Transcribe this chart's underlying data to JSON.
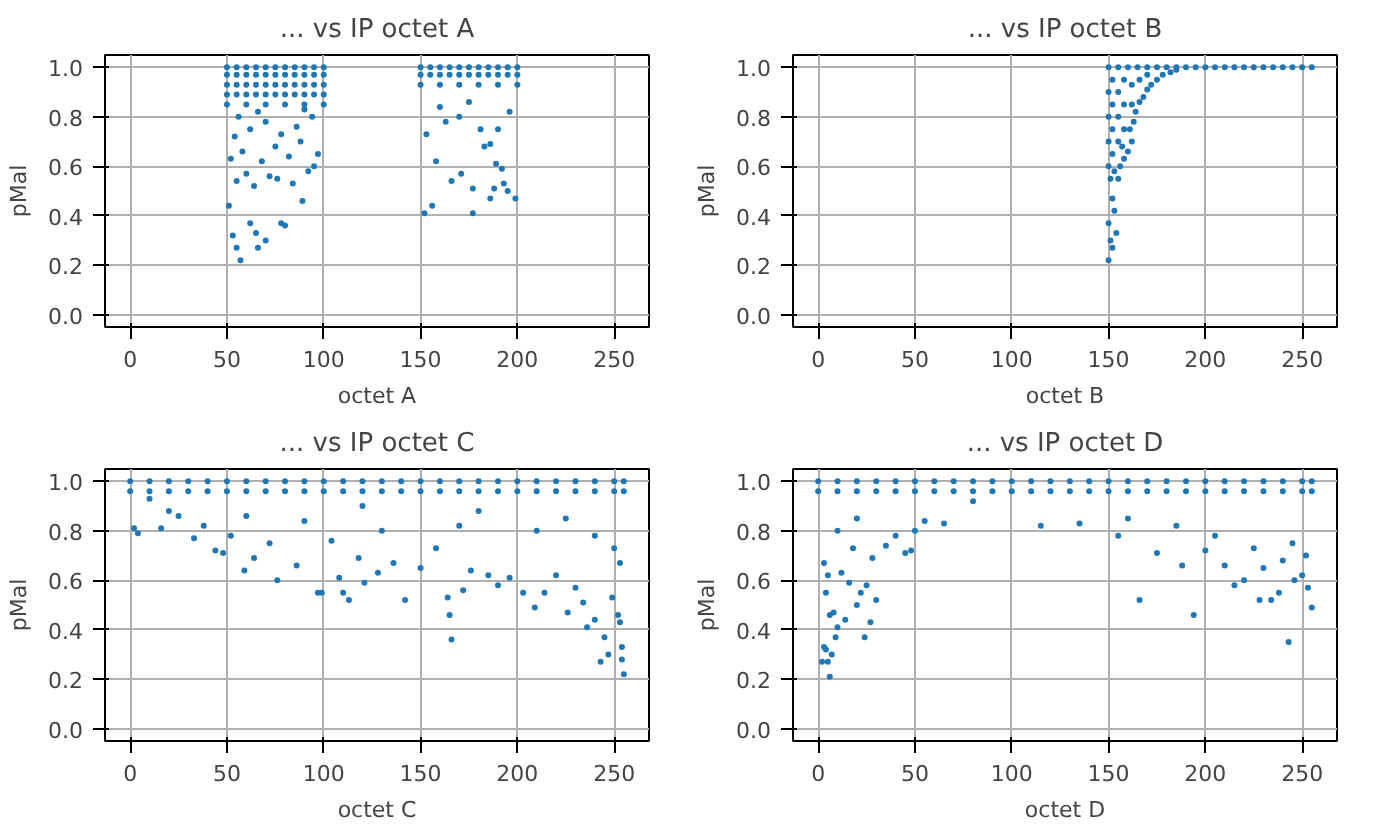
{
  "chart_data": [
    {
      "type": "scatter",
      "title": "... vs IP octet A",
      "xlabel": "octet A",
      "ylabel": "pMal",
      "color": "#1f77b4",
      "marker": "circle",
      "grid": true,
      "xlim": [
        -13,
        268
      ],
      "ylim": [
        -0.05,
        1.05
      ],
      "xticks": [
        0,
        50,
        100,
        150,
        200,
        250
      ],
      "yticks": [
        {
          "value": 0,
          "label": "0.0"
        },
        {
          "value": 0.2,
          "label": "0.2"
        },
        {
          "value": 0.4,
          "label": "0.4"
        },
        {
          "value": 0.6,
          "label": "0.6"
        },
        {
          "value": 0.8,
          "label": "0.8"
        },
        {
          "value": 1,
          "label": "1.0"
        }
      ],
      "x": [
        50,
        55,
        60,
        65,
        70,
        75,
        80,
        85,
        90,
        95,
        100,
        50,
        55,
        60,
        65,
        70,
        75,
        80,
        85,
        90,
        95,
        100,
        50,
        55,
        60,
        65,
        70,
        75,
        80,
        85,
        90,
        95,
        100,
        50,
        55,
        60,
        65,
        70,
        75,
        80,
        85,
        90,
        95,
        100,
        50,
        60,
        70,
        80,
        90,
        100,
        150,
        155,
        160,
        165,
        170,
        175,
        180,
        185,
        190,
        195,
        200,
        150,
        155,
        160,
        165,
        170,
        175,
        180,
        185,
        190,
        195,
        200,
        150,
        160,
        170,
        180,
        190,
        200,
        51,
        53,
        55,
        57,
        62,
        65,
        66,
        70,
        78,
        80,
        89,
        55,
        60,
        64,
        72,
        76,
        84,
        92,
        95,
        52,
        58,
        68,
        75,
        82,
        88,
        97,
        54,
        62,
        70,
        78,
        86,
        94,
        56,
        66,
        90,
        152,
        156,
        158,
        153,
        166,
        171,
        177,
        177,
        186,
        188,
        189,
        192,
        193,
        195,
        199,
        183,
        186,
        181,
        163,
        170,
        190,
        196,
        160,
        175
      ],
      "values": [
        1.0,
        1.0,
        1.0,
        1.0,
        1.0,
        1.0,
        1.0,
        1.0,
        1.0,
        1.0,
        1.0,
        0.97,
        0.97,
        0.97,
        0.97,
        0.97,
        0.97,
        0.97,
        0.97,
        0.97,
        0.97,
        0.97,
        0.93,
        0.93,
        0.93,
        0.93,
        0.93,
        0.93,
        0.93,
        0.93,
        0.93,
        0.93,
        0.93,
        0.89,
        0.89,
        0.89,
        0.89,
        0.89,
        0.89,
        0.89,
        0.89,
        0.89,
        0.89,
        0.89,
        0.85,
        0.85,
        0.85,
        0.85,
        0.85,
        0.85,
        1.0,
        1.0,
        1.0,
        1.0,
        1.0,
        1.0,
        1.0,
        1.0,
        1.0,
        1.0,
        1.0,
        0.97,
        0.97,
        0.97,
        0.97,
        0.97,
        0.97,
        0.97,
        0.97,
        0.97,
        0.97,
        0.97,
        0.93,
        0.93,
        0.93,
        0.93,
        0.93,
        0.93,
        0.44,
        0.32,
        0.27,
        0.22,
        0.37,
        0.33,
        0.27,
        0.3,
        0.37,
        0.36,
        0.46,
        0.54,
        0.57,
        0.52,
        0.56,
        0.55,
        0.53,
        0.58,
        0.6,
        0.63,
        0.66,
        0.62,
        0.68,
        0.64,
        0.7,
        0.65,
        0.72,
        0.75,
        0.78,
        0.73,
        0.76,
        0.8,
        0.8,
        0.82,
        0.83,
        0.41,
        0.44,
        0.62,
        0.73,
        0.54,
        0.57,
        0.41,
        0.51,
        0.47,
        0.51,
        0.61,
        0.59,
        0.53,
        0.5,
        0.47,
        0.68,
        0.69,
        0.75,
        0.78,
        0.8,
        0.75,
        0.82,
        0.84,
        0.86
      ]
    },
    {
      "type": "scatter",
      "title": "... vs IP octet B",
      "xlabel": "octet B",
      "ylabel": "pMal",
      "color": "#1f77b4",
      "marker": "circle",
      "grid": true,
      "xlim": [
        -13,
        268
      ],
      "ylim": [
        -0.05,
        1.05
      ],
      "xticks": [
        0,
        50,
        100,
        150,
        200,
        250
      ],
      "yticks": [
        {
          "value": 0,
          "label": "0.0"
        },
        {
          "value": 0.2,
          "label": "0.2"
        },
        {
          "value": 0.4,
          "label": "0.4"
        },
        {
          "value": 0.6,
          "label": "0.6"
        },
        {
          "value": 0.8,
          "label": "0.8"
        },
        {
          "value": 1,
          "label": "1.0"
        }
      ],
      "x": [
        150,
        155,
        160,
        165,
        170,
        175,
        180,
        185,
        190,
        195,
        200,
        205,
        210,
        215,
        220,
        225,
        230,
        235,
        240,
        245,
        250,
        255,
        150,
        150,
        151,
        152,
        153,
        152,
        154,
        151,
        153,
        155,
        156,
        158,
        157,
        160,
        162,
        161,
        163,
        164,
        166,
        168,
        170,
        172,
        175,
        178,
        182,
        185,
        150,
        150,
        150,
        150,
        152,
        152,
        152,
        152,
        155,
        155,
        155,
        158,
        158,
        158,
        162,
        162,
        166,
        170
      ],
      "values": [
        1.0,
        1.0,
        1.0,
        1.0,
        1.0,
        1.0,
        1.0,
        1.0,
        1.0,
        1.0,
        1.0,
        1.0,
        1.0,
        1.0,
        1.0,
        1.0,
        1.0,
        1.0,
        1.0,
        1.0,
        1.0,
        1.0,
        0.22,
        0.37,
        0.3,
        0.27,
        0.42,
        0.47,
        0.33,
        0.55,
        0.58,
        0.55,
        0.6,
        0.63,
        0.68,
        0.66,
        0.7,
        0.75,
        0.78,
        0.82,
        0.86,
        0.88,
        0.91,
        0.93,
        0.95,
        0.97,
        0.98,
        0.99,
        0.6,
        0.7,
        0.8,
        0.9,
        0.65,
        0.75,
        0.85,
        0.95,
        0.7,
        0.8,
        0.9,
        0.75,
        0.85,
        0.95,
        0.85,
        0.93,
        0.95,
        0.97
      ]
    },
    {
      "type": "scatter",
      "title": "... vs IP octet C",
      "xlabel": "octet C",
      "ylabel": "pMal",
      "color": "#1f77b4",
      "marker": "circle",
      "grid": true,
      "xlim": [
        -13,
        268
      ],
      "ylim": [
        -0.05,
        1.05
      ],
      "xticks": [
        0,
        50,
        100,
        150,
        200,
        250
      ],
      "yticks": [
        {
          "value": 0,
          "label": "0.0"
        },
        {
          "value": 0.2,
          "label": "0.2"
        },
        {
          "value": 0.4,
          "label": "0.4"
        },
        {
          "value": 0.6,
          "label": "0.6"
        },
        {
          "value": 0.8,
          "label": "0.8"
        },
        {
          "value": 1,
          "label": "1.0"
        }
      ],
      "x": [
        0,
        10,
        20,
        30,
        40,
        50,
        60,
        70,
        80,
        90,
        100,
        110,
        120,
        130,
        140,
        150,
        160,
        170,
        180,
        190,
        200,
        210,
        220,
        230,
        240,
        250,
        255,
        0,
        10,
        20,
        30,
        40,
        50,
        60,
        70,
        80,
        90,
        100,
        110,
        120,
        130,
        140,
        150,
        160,
        170,
        180,
        190,
        200,
        210,
        220,
        230,
        240,
        250,
        255,
        2,
        4,
        10,
        16,
        25,
        33,
        38,
        44,
        48,
        52,
        59,
        64,
        72,
        76,
        86,
        97,
        99,
        104,
        108,
        110,
        113,
        118,
        121,
        128,
        136,
        142,
        150,
        158,
        164,
        165,
        166,
        172,
        176,
        185,
        190,
        196,
        203,
        209,
        214,
        220,
        226,
        230,
        234,
        236,
        240,
        243,
        245,
        247,
        249,
        252,
        253,
        254,
        254,
        255,
        253,
        250,
        20,
        60,
        90,
        130,
        170,
        210,
        240,
        120,
        180,
        225
      ],
      "values": [
        1.0,
        1.0,
        1.0,
        1.0,
        1.0,
        1.0,
        1.0,
        1.0,
        1.0,
        1.0,
        1.0,
        1.0,
        1.0,
        1.0,
        1.0,
        1.0,
        1.0,
        1.0,
        1.0,
        1.0,
        1.0,
        1.0,
        1.0,
        1.0,
        1.0,
        1.0,
        1.0,
        0.96,
        0.96,
        0.96,
        0.96,
        0.96,
        0.96,
        0.96,
        0.96,
        0.96,
        0.96,
        0.96,
        0.96,
        0.96,
        0.96,
        0.96,
        0.96,
        0.96,
        0.96,
        0.96,
        0.96,
        0.96,
        0.96,
        0.96,
        0.96,
        0.96,
        0.96,
        0.96,
        0.81,
        0.79,
        0.93,
        0.81,
        0.86,
        0.77,
        0.82,
        0.72,
        0.71,
        0.78,
        0.64,
        0.69,
        0.75,
        0.6,
        0.66,
        0.55,
        0.55,
        0.76,
        0.61,
        0.55,
        0.52,
        0.69,
        0.59,
        0.63,
        0.67,
        0.52,
        0.65,
        0.73,
        0.53,
        0.46,
        0.36,
        0.56,
        0.64,
        0.62,
        0.58,
        0.61,
        0.55,
        0.49,
        0.55,
        0.62,
        0.47,
        0.57,
        0.51,
        0.41,
        0.44,
        0.27,
        0.37,
        0.3,
        0.53,
        0.46,
        0.43,
        0.33,
        0.28,
        0.22,
        0.67,
        0.73,
        0.88,
        0.86,
        0.84,
        0.8,
        0.82,
        0.8,
        0.78,
        0.9,
        0.88,
        0.85
      ]
    },
    {
      "type": "scatter",
      "title": "... vs IP octet D",
      "xlabel": "octet D",
      "ylabel": "pMal",
      "color": "#1f77b4",
      "marker": "circle",
      "grid": true,
      "xlim": [
        -13,
        268
      ],
      "ylim": [
        -0.05,
        1.05
      ],
      "xticks": [
        0,
        50,
        100,
        150,
        200,
        250
      ],
      "yticks": [
        {
          "value": 0,
          "label": "0.0"
        },
        {
          "value": 0.2,
          "label": "0.2"
        },
        {
          "value": 0.4,
          "label": "0.4"
        },
        {
          "value": 0.6,
          "label": "0.6"
        },
        {
          "value": 0.8,
          "label": "0.8"
        },
        {
          "value": 1,
          "label": "1.0"
        }
      ],
      "x": [
        0,
        10,
        20,
        30,
        40,
        50,
        60,
        70,
        80,
        90,
        100,
        110,
        120,
        130,
        140,
        150,
        160,
        170,
        180,
        190,
        200,
        210,
        220,
        230,
        240,
        250,
        255,
        0,
        10,
        20,
        30,
        40,
        50,
        60,
        70,
        80,
        90,
        100,
        110,
        120,
        130,
        140,
        150,
        160,
        170,
        180,
        190,
        200,
        210,
        220,
        230,
        240,
        250,
        255,
        2,
        3,
        4,
        5,
        6,
        7,
        4,
        3,
        5,
        6,
        8,
        9,
        10,
        12,
        14,
        16,
        18,
        20,
        22,
        24,
        25,
        27,
        30,
        28,
        35,
        40,
        45,
        48,
        50,
        55,
        65,
        80,
        115,
        135,
        155,
        166,
        175,
        188,
        194,
        200,
        210,
        215,
        220,
        228,
        234,
        238,
        243,
        246,
        250,
        253,
        255,
        252,
        240,
        230,
        225,
        205,
        185,
        160,
        245,
        20,
        10
      ],
      "values": [
        1.0,
        1.0,
        1.0,
        1.0,
        1.0,
        1.0,
        1.0,
        1.0,
        1.0,
        1.0,
        1.0,
        1.0,
        1.0,
        1.0,
        1.0,
        1.0,
        1.0,
        1.0,
        1.0,
        1.0,
        1.0,
        1.0,
        1.0,
        1.0,
        1.0,
        1.0,
        1.0,
        0.96,
        0.96,
        0.96,
        0.96,
        0.96,
        0.96,
        0.96,
        0.96,
        0.96,
        0.96,
        0.96,
        0.96,
        0.96,
        0.96,
        0.96,
        0.96,
        0.96,
        0.96,
        0.96,
        0.96,
        0.96,
        0.96,
        0.96,
        0.96,
        0.96,
        0.96,
        0.96,
        0.27,
        0.33,
        0.32,
        0.27,
        0.21,
        0.3,
        0.55,
        0.67,
        0.62,
        0.46,
        0.47,
        0.37,
        0.41,
        0.63,
        0.44,
        0.59,
        0.73,
        0.5,
        0.55,
        0.37,
        0.58,
        0.43,
        0.52,
        0.69,
        0.74,
        0.78,
        0.71,
        0.72,
        0.8,
        0.84,
        0.83,
        0.92,
        0.82,
        0.83,
        0.78,
        0.52,
        0.71,
        0.66,
        0.46,
        0.72,
        0.66,
        0.58,
        0.6,
        0.52,
        0.52,
        0.55,
        0.35,
        0.6,
        0.62,
        0.57,
        0.49,
        0.7,
        0.68,
        0.65,
        0.73,
        0.78,
        0.82,
        0.85,
        0.75,
        0.85,
        0.8
      ]
    }
  ]
}
